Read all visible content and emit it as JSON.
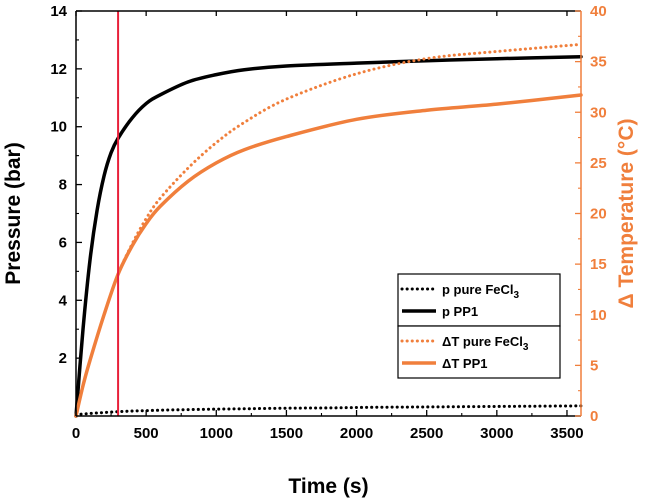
{
  "chart_data": {
    "type": "line",
    "xlabel": "Time (s)",
    "ylabel_left": "Pressure (bar)",
    "ylabel_right": "Δ Temperature (°C)",
    "xlim": [
      0,
      3600
    ],
    "ylim_left": [
      0,
      14
    ],
    "ylim_right": [
      0,
      40
    ],
    "x_ticks": [
      0,
      500,
      1000,
      1500,
      2000,
      2500,
      3000,
      3500
    ],
    "y_left_ticks": [
      2,
      4,
      6,
      8,
      10,
      12,
      14
    ],
    "y_right_ticks": [
      0,
      5,
      10,
      15,
      20,
      25,
      30,
      35,
      40
    ],
    "marker_line": {
      "x": 300,
      "color": "#e8203a"
    },
    "colors": {
      "pressure": "#000000",
      "temperature": "#f07f3c"
    },
    "series": [
      {
        "name": "p pure FeCl3",
        "legend": {
          "base": "p pure FeCl",
          "sub": "3"
        },
        "axis": "left",
        "style": "dotted",
        "x": [
          0,
          300,
          600,
          900,
          1200,
          1500,
          1800,
          2100,
          2400,
          2700,
          3000,
          3300,
          3600
        ],
        "y": [
          0.05,
          0.15,
          0.2,
          0.23,
          0.25,
          0.27,
          0.28,
          0.3,
          0.31,
          0.32,
          0.33,
          0.34,
          0.35
        ]
      },
      {
        "name": "p PP1",
        "legend": {
          "base": "p PP1",
          "sub": ""
        },
        "axis": "left",
        "style": "solid",
        "x": [
          0,
          50,
          100,
          150,
          200,
          250,
          300,
          400,
          500,
          600,
          800,
          1000,
          1200,
          1500,
          2000,
          2500,
          3000,
          3600
        ],
        "y": [
          0,
          3.0,
          5.4,
          7.1,
          8.3,
          9.1,
          9.6,
          10.3,
          10.8,
          11.1,
          11.55,
          11.8,
          11.97,
          12.1,
          12.2,
          12.28,
          12.35,
          12.42
        ]
      },
      {
        "name": "ΔT pure FeCl3",
        "legend": {
          "base": "ΔT pure FeCl",
          "sub": "3"
        },
        "axis": "right",
        "style": "dotted",
        "x": [
          0,
          50,
          100,
          200,
          300,
          400,
          500,
          600,
          800,
          1000,
          1200,
          1500,
          2000,
          2500,
          3000,
          3600
        ],
        "y": [
          0,
          3.0,
          5.5,
          10.0,
          14.0,
          17.0,
          19.5,
          21.5,
          24.5,
          27.0,
          29.0,
          31.3,
          33.8,
          35.3,
          36.0,
          36.7
        ]
      },
      {
        "name": "ΔT PP1",
        "legend": {
          "base": "ΔT PP1",
          "sub": ""
        },
        "axis": "right",
        "style": "solid",
        "x": [
          0,
          50,
          100,
          200,
          300,
          400,
          500,
          600,
          800,
          1000,
          1200,
          1500,
          2000,
          2500,
          3000,
          3600
        ],
        "y": [
          0,
          3.0,
          5.5,
          10.0,
          14.0,
          16.8,
          19.0,
          20.7,
          23.2,
          25.0,
          26.3,
          27.6,
          29.3,
          30.2,
          30.8,
          31.7
        ]
      }
    ],
    "legend_position": "bottom-right"
  }
}
